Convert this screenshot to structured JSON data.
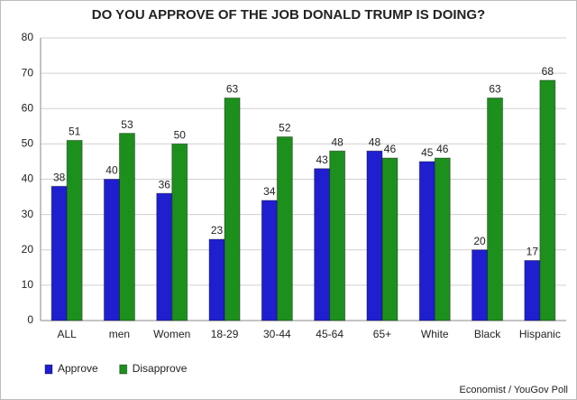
{
  "chart_data": {
    "type": "bar",
    "title": "DO YOU APPROVE OF THE JOB DONALD TRUMP IS DOING?",
    "categories": [
      "ALL",
      "men",
      "Women",
      "18-29",
      "30-44",
      "45-64",
      "65+",
      "White",
      "Black",
      "Hispanic"
    ],
    "series": [
      {
        "name": "Approve",
        "color": "#1f1fd0",
        "values": [
          38,
          40,
          36,
          23,
          34,
          43,
          48,
          45,
          20,
          17
        ]
      },
      {
        "name": "Disapprove",
        "color": "#1c8f1c",
        "values": [
          51,
          53,
          50,
          63,
          52,
          48,
          46,
          46,
          63,
          68
        ]
      }
    ],
    "ylim": [
      0,
      80
    ],
    "yticks": [
      0,
      10,
      20,
      30,
      40,
      50,
      60,
      70,
      80
    ],
    "grid": true,
    "legend": "bottom-left",
    "source": "Economist / YouGov Poll"
  }
}
